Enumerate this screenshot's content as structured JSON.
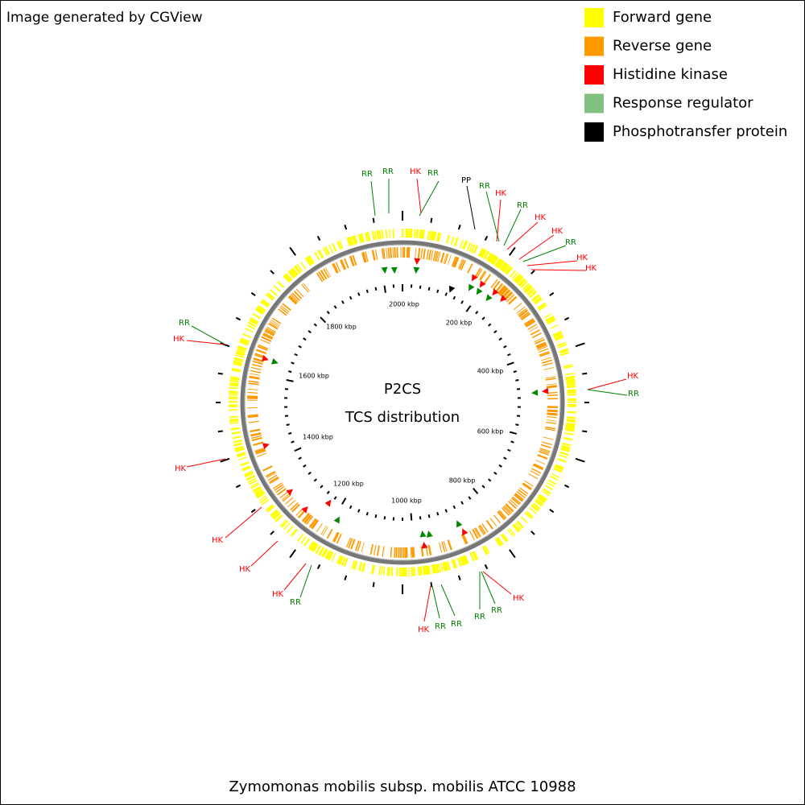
{
  "header": {
    "credit": "Image generated by CGView"
  },
  "legend": [
    {
      "label": "Forward gene",
      "color": "#ffff00"
    },
    {
      "label": "Reverse gene",
      "color": "#ff9900"
    },
    {
      "label": "Histidine kinase",
      "color": "#ff0000"
    },
    {
      "label": "Response regulator",
      "color": "#80c080"
    },
    {
      "label": "Phosphotransfer protein",
      "color": "#000000"
    }
  ],
  "center": {
    "title": "P2CS",
    "subtitle": "TCS distribution"
  },
  "scale_labels": [
    "2000 kbp",
    "200 kbp",
    "400 kbp",
    "600 kbp",
    "800 kbp",
    "1000 kbp",
    "1200 kbp",
    "1400 kbp",
    "1600 kbp",
    "1800 kbp"
  ],
  "features": [
    {
      "label": "RR",
      "color": "#008000"
    },
    {
      "label": "RR",
      "color": "#008000"
    },
    {
      "label": "HK",
      "color": "#ff0000"
    },
    {
      "label": "RR",
      "color": "#008000"
    },
    {
      "label": "PP",
      "color": "#000000"
    },
    {
      "label": "RR",
      "color": "#008000"
    },
    {
      "label": "HK",
      "color": "#ff0000"
    },
    {
      "label": "RR",
      "color": "#008000"
    },
    {
      "label": "HK",
      "color": "#ff0000"
    },
    {
      "label": "HK",
      "color": "#ff0000"
    },
    {
      "label": "RR",
      "color": "#008000"
    },
    {
      "label": "HK",
      "color": "#ff0000"
    },
    {
      "label": "HK",
      "color": "#ff0000"
    },
    {
      "label": "HK",
      "color": "#ff0000"
    },
    {
      "label": "RR",
      "color": "#008000"
    },
    {
      "label": "RR",
      "color": "#008000"
    },
    {
      "label": "HK",
      "color": "#ff0000"
    },
    {
      "label": "HK",
      "color": "#ff0000"
    },
    {
      "label": "HK",
      "color": "#ff0000"
    },
    {
      "label": "HK",
      "color": "#ff0000"
    },
    {
      "label": "HK",
      "color": "#ff0000"
    },
    {
      "label": "RR",
      "color": "#008000"
    },
    {
      "label": "HK",
      "color": "#ff0000"
    },
    {
      "label": "RR",
      "color": "#008000"
    },
    {
      "label": "RR",
      "color": "#008000"
    },
    {
      "label": "RR",
      "color": "#008000"
    },
    {
      "label": "RR",
      "color": "#008000"
    },
    {
      "label": "HK",
      "color": "#ff0000"
    }
  ],
  "footer": {
    "organism": "Zymomonas mobilis subsp. mobilis ATCC 10988"
  }
}
